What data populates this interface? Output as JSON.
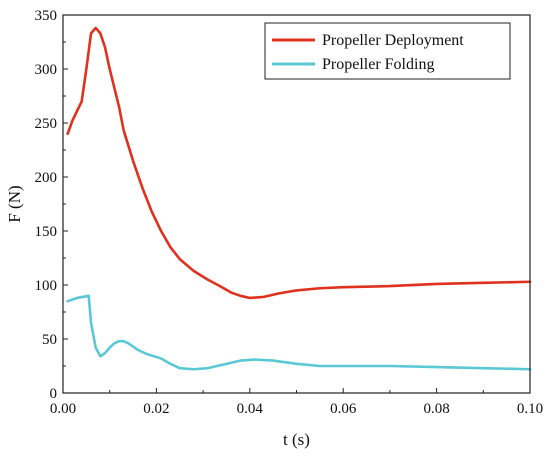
{
  "chart_data": {
    "type": "line",
    "xlabel": "t (s)",
    "ylabel": "F (N)",
    "xlim": [
      0,
      0.1
    ],
    "ylim": [
      0,
      350
    ],
    "x_ticks": [
      0.0,
      0.02,
      0.04,
      0.06,
      0.08,
      0.1
    ],
    "x_tick_labels": [
      "0.00",
      "0.02",
      "0.04",
      "0.06",
      "0.08",
      "0.10"
    ],
    "y_ticks": [
      0,
      50,
      100,
      150,
      200,
      250,
      300,
      350
    ],
    "y_tick_labels": [
      "0",
      "50",
      "100",
      "150",
      "200",
      "250",
      "300",
      "350"
    ],
    "grid": false,
    "legend_position": "top-right",
    "series": [
      {
        "name": "Propeller Deployment",
        "color": "#e0301e",
        "points": [
          [
            0.001,
            240
          ],
          [
            0.002,
            252
          ],
          [
            0.004,
            270
          ],
          [
            0.005,
            300
          ],
          [
            0.006,
            333
          ],
          [
            0.007,
            338
          ],
          [
            0.008,
            333
          ],
          [
            0.009,
            320
          ],
          [
            0.01,
            300
          ],
          [
            0.012,
            265
          ],
          [
            0.013,
            243
          ],
          [
            0.015,
            215
          ],
          [
            0.017,
            190
          ],
          [
            0.019,
            168
          ],
          [
            0.021,
            150
          ],
          [
            0.023,
            135
          ],
          [
            0.025,
            124
          ],
          [
            0.028,
            113
          ],
          [
            0.031,
            105
          ],
          [
            0.034,
            98
          ],
          [
            0.036,
            93
          ],
          [
            0.038,
            90
          ],
          [
            0.04,
            88
          ],
          [
            0.043,
            89
          ],
          [
            0.046,
            92
          ],
          [
            0.05,
            95
          ],
          [
            0.055,
            97
          ],
          [
            0.06,
            98
          ],
          [
            0.07,
            99
          ],
          [
            0.08,
            101
          ],
          [
            0.09,
            102
          ],
          [
            0.1,
            103
          ]
        ]
      },
      {
        "name": "Propeller Folding",
        "color": "#5bc8d5",
        "points": [
          [
            0.001,
            85
          ],
          [
            0.003,
            88
          ],
          [
            0.0055,
            90
          ],
          [
            0.006,
            65
          ],
          [
            0.007,
            42
          ],
          [
            0.008,
            34
          ],
          [
            0.009,
            37
          ],
          [
            0.01,
            42
          ],
          [
            0.011,
            46
          ],
          [
            0.012,
            48
          ],
          [
            0.013,
            48
          ],
          [
            0.014,
            46
          ],
          [
            0.016,
            40
          ],
          [
            0.018,
            36
          ],
          [
            0.021,
            32
          ],
          [
            0.023,
            27
          ],
          [
            0.025,
            23
          ],
          [
            0.028,
            22
          ],
          [
            0.031,
            23
          ],
          [
            0.035,
            27
          ],
          [
            0.038,
            30
          ],
          [
            0.041,
            31
          ],
          [
            0.045,
            30
          ],
          [
            0.05,
            27
          ],
          [
            0.055,
            25
          ],
          [
            0.06,
            25
          ],
          [
            0.07,
            25
          ],
          [
            0.08,
            24
          ],
          [
            0.09,
            23
          ],
          [
            0.1,
            22
          ]
        ]
      }
    ]
  }
}
